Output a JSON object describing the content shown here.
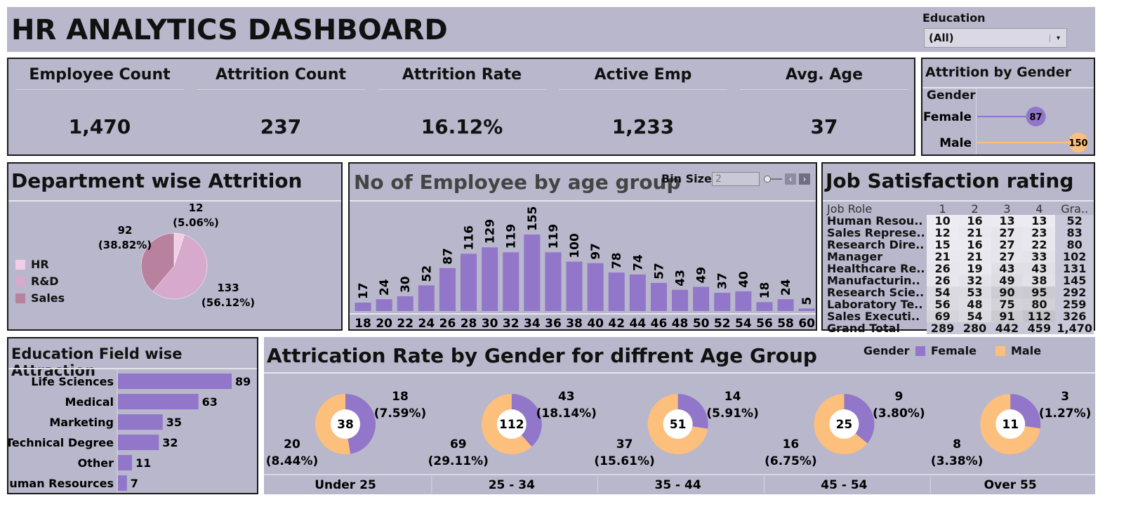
{
  "header": {
    "title": "HR ANALYTICS DASHBOARD",
    "filter_label": "Education",
    "filter_value": "(All)"
  },
  "kpis": [
    {
      "label": "Employee Count",
      "value": "1,470"
    },
    {
      "label": "Attrition Count",
      "value": "237"
    },
    {
      "label": "Attrition Rate",
      "value": "16.12%"
    },
    {
      "label": "Active Emp",
      "value": "1,233"
    },
    {
      "label": "Avg. Age",
      "value": "37"
    }
  ],
  "colors": {
    "purple": "#9176c9",
    "orange": "#fdbf7c",
    "panel": "#b8b7cb",
    "hr": "#f1cde6",
    "rd": "#d7a9cc",
    "sales": "#b8829f"
  },
  "chart_data": [
    {
      "id": "attrition-by-gender",
      "type": "lollipop",
      "title": "Attrition by Gender",
      "dimension_label": "Gender",
      "categories": [
        "Female",
        "Male"
      ],
      "values": [
        87,
        150
      ],
      "xlim": [
        0,
        150
      ]
    },
    {
      "id": "department-attrition",
      "type": "pie",
      "title": "Department wise Attrition",
      "categories": [
        "HR",
        "R&D",
        "Sales"
      ],
      "values": [
        12,
        133,
        92
      ],
      "labels": [
        {
          "value": "12",
          "pct": "(5.06%)"
        },
        {
          "value": "133",
          "pct": "(56.12%)"
        },
        {
          "value": "92",
          "pct": "(38.82%)"
        }
      ]
    },
    {
      "id": "employees-by-age",
      "type": "bar",
      "title": "No of Employee by age group",
      "bin_size_label": "Bin Size",
      "bin_size": "2",
      "categories": [
        "18",
        "20",
        "22",
        "24",
        "26",
        "28",
        "30",
        "32",
        "34",
        "36",
        "38",
        "40",
        "42",
        "44",
        "46",
        "48",
        "50",
        "52",
        "54",
        "56",
        "58",
        "60"
      ],
      "values": [
        17,
        24,
        30,
        52,
        87,
        116,
        129,
        119,
        155,
        119,
        100,
        97,
        78,
        74,
        57,
        43,
        49,
        37,
        40,
        18,
        24,
        5
      ],
      "ylim": [
        0,
        155
      ]
    },
    {
      "id": "job-satisfaction",
      "type": "table",
      "title": "Job Satisfaction rating",
      "columns": [
        "Job Role",
        "1",
        "2",
        "3",
        "4",
        "Gra.."
      ],
      "rows": [
        {
          "role": "Human Resou..",
          "values": [
            "10",
            "16",
            "13",
            "13"
          ],
          "total": "52"
        },
        {
          "role": "Sales Represe..",
          "values": [
            "12",
            "21",
            "27",
            "23"
          ],
          "total": "83"
        },
        {
          "role": "Research Dire..",
          "values": [
            "15",
            "16",
            "27",
            "22"
          ],
          "total": "80"
        },
        {
          "role": "Manager",
          "values": [
            "21",
            "21",
            "27",
            "33"
          ],
          "total": "102"
        },
        {
          "role": "Healthcare Re..",
          "values": [
            "26",
            "19",
            "43",
            "43"
          ],
          "total": "131"
        },
        {
          "role": "Manufacturin..",
          "values": [
            "26",
            "32",
            "49",
            "38"
          ],
          "total": "145"
        },
        {
          "role": "Research Scie..",
          "values": [
            "54",
            "53",
            "90",
            "95"
          ],
          "total": "292"
        },
        {
          "role": "Laboratory Te..",
          "values": [
            "56",
            "48",
            "75",
            "80"
          ],
          "total": "259"
        },
        {
          "role": "Sales Executi..",
          "values": [
            "69",
            "54",
            "91",
            "112"
          ],
          "total": "326"
        }
      ],
      "grand_total": {
        "role": "Grand Total",
        "values": [
          "289",
          "280",
          "442",
          "459"
        ],
        "total": "1,470"
      }
    },
    {
      "id": "education-field",
      "type": "bar",
      "orientation": "horizontal",
      "title": "Education Field wise Attraction",
      "categories": [
        "Life Sciences",
        "Medical",
        "Marketing",
        "Technical Degree",
        "Other",
        "Human Resources"
      ],
      "values": [
        89,
        63,
        35,
        32,
        11,
        7
      ],
      "xlim": [
        0,
        89
      ]
    },
    {
      "id": "attrition-gender-age",
      "type": "pie",
      "style": "donut",
      "title": "Attrication Rate by Gender for diffrent Age Group",
      "legend_title": "Gender",
      "series": [
        "Female",
        "Male"
      ],
      "groups": [
        {
          "label": "Under 25",
          "total": "38",
          "female": 18,
          "male": 20,
          "female_pct": "(7.59%)",
          "male_pct": "(8.44%)"
        },
        {
          "label": "25 - 34",
          "total": "112",
          "female": 43,
          "male": 69,
          "female_pct": "(18.14%)",
          "male_pct": "(29.11%)"
        },
        {
          "label": "35 - 44",
          "total": "51",
          "female": 14,
          "male": 37,
          "female_pct": "(5.91%)",
          "male_pct": "(15.61%)"
        },
        {
          "label": "45 - 54",
          "total": "25",
          "female": 9,
          "male": 16,
          "female_pct": "(3.80%)",
          "male_pct": "(6.75%)"
        },
        {
          "label": "Over 55",
          "total": "11",
          "female": 3,
          "male": 8,
          "female_pct": "(1.27%)",
          "male_pct": "(3.38%)"
        }
      ]
    }
  ]
}
